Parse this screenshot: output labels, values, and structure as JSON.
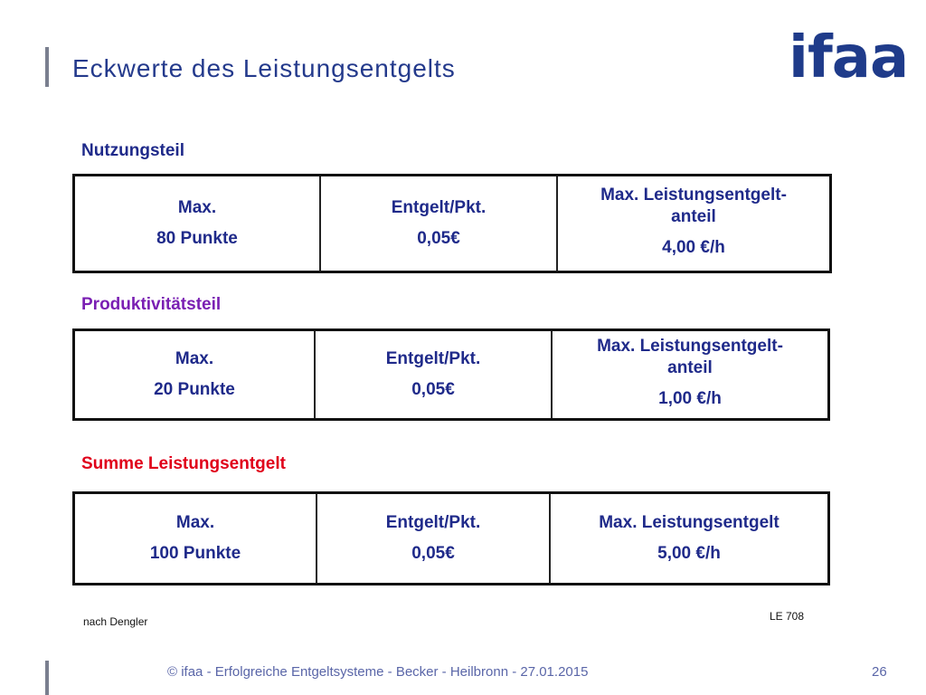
{
  "header": {
    "title": "Eckwerte des Leistungsentgelts",
    "logo_text": "ifaa"
  },
  "sections": [
    {
      "label": "Nutzungsteil",
      "label_color": "#1f2a8a",
      "points_label": "Max.",
      "points_value": "80 Punkte",
      "rate_label": "Entgelt/Pkt.",
      "rate_value": "0,05€",
      "share_label_1": "Max. Leistungsentgelt-",
      "share_label_2": "anteil",
      "share_value": "4,00 €/h"
    },
    {
      "label": "Produktivitätsteil",
      "label_color": "#7a1fb3",
      "points_label": "Max.",
      "points_value": "20 Punkte",
      "rate_label": "Entgelt/Pkt.",
      "rate_value": "0,05€",
      "share_label_1": "Max. Leistungsentgelt-",
      "share_label_2": "anteil",
      "share_value": "1,00 €/h"
    },
    {
      "label": "Summe Leistungsentgelt",
      "label_color": "#e0001a",
      "points_label": "Max.",
      "points_value": "100 Punkte",
      "rate_label": "Entgelt/Pkt.",
      "rate_value": "0,05€",
      "share_label": "Max. Leistungsentgelt",
      "share_value": "5,00 €/h"
    }
  ],
  "notes": {
    "source": "nach Dengler",
    "reference": "LE 708"
  },
  "footer": {
    "text": "© ifaa - Erfolgreiche Entgeltsysteme - Becker - Heilbronn - 27.01.2015",
    "page_number": "26"
  }
}
